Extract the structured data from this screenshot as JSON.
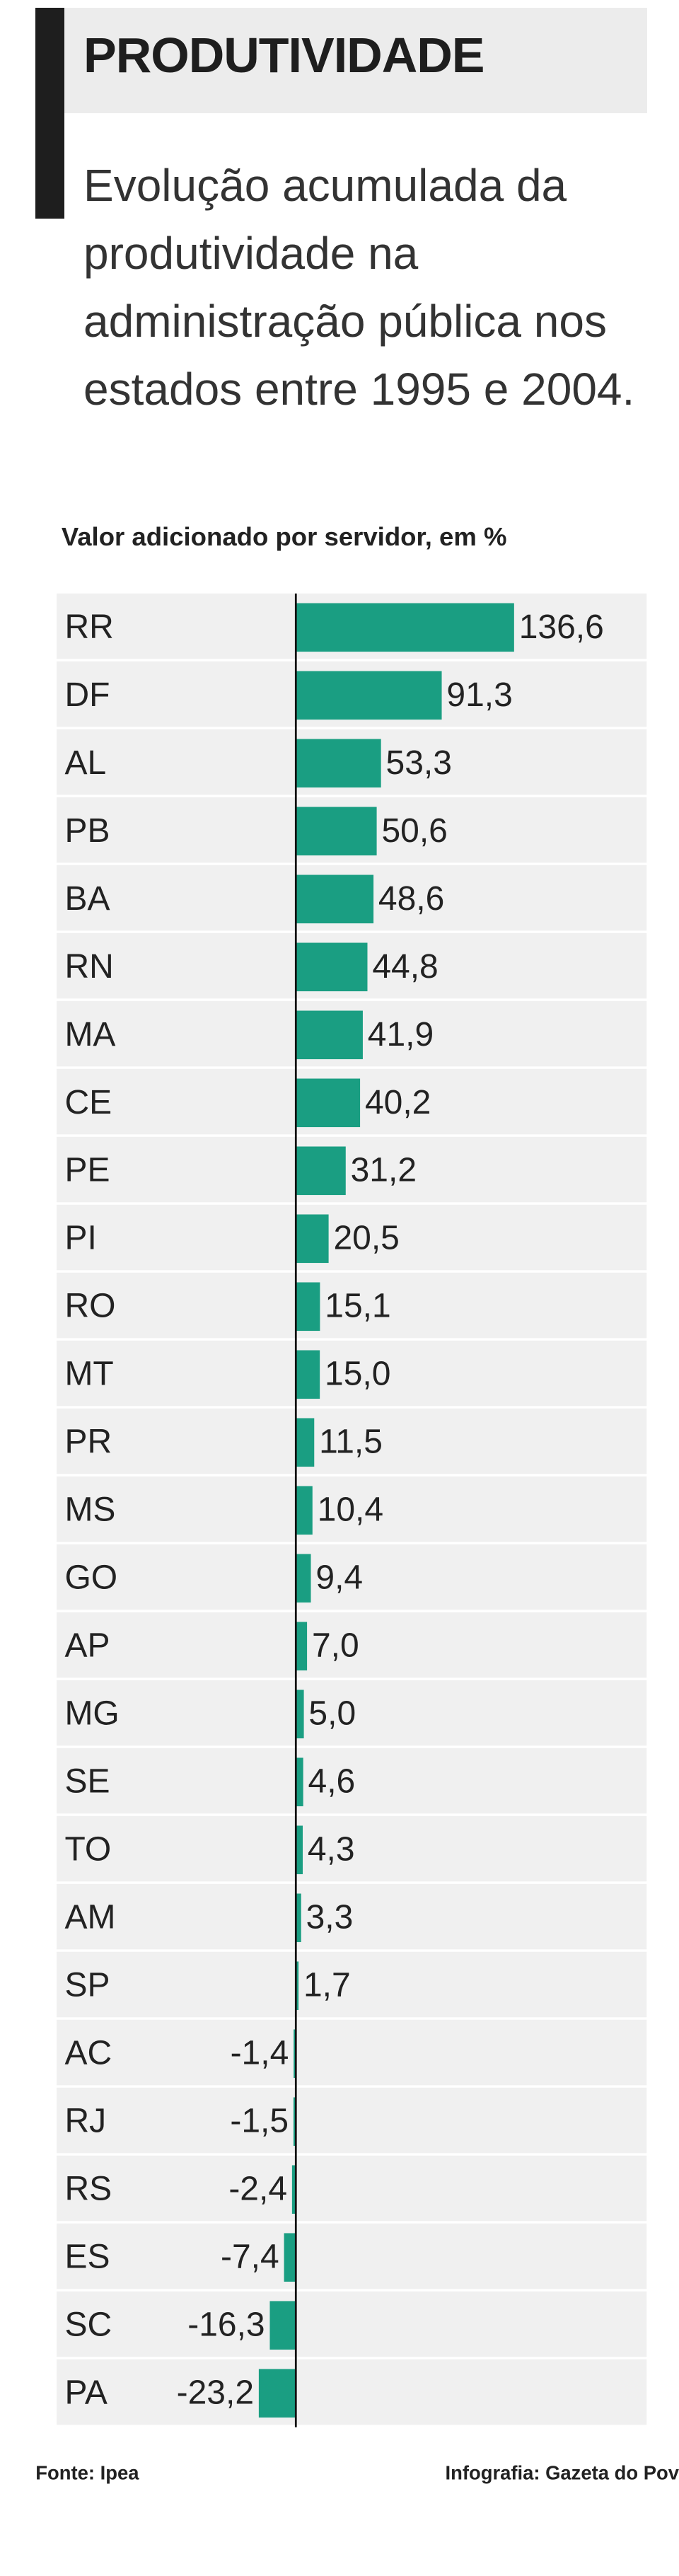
{
  "chart_data": {
    "type": "bar",
    "orientation": "horizontal",
    "title": "PRODUTIVIDADE",
    "subtitle": "Evolução acumulada da produtividade na administração pública nos estados entre 1995 e 2004.",
    "axis_label": "Valor adicionado por servidor, em %",
    "categories": [
      "RR",
      "DF",
      "AL",
      "PB",
      "BA",
      "RN",
      "MA",
      "CE",
      "PE",
      "PI",
      "RO",
      "MT",
      "PR",
      "MS",
      "GO",
      "AP",
      "MG",
      "SE",
      "TO",
      "AM",
      "SP",
      "AC",
      "RJ",
      "RS",
      "ES",
      "SC",
      "PA"
    ],
    "values": [
      136.6,
      91.3,
      53.3,
      50.6,
      48.6,
      44.8,
      41.9,
      40.2,
      31.2,
      20.5,
      15.1,
      15.0,
      11.5,
      10.4,
      9.4,
      7.0,
      5.0,
      4.6,
      4.3,
      3.3,
      1.7,
      -1.4,
      -1.5,
      -2.4,
      -7.4,
      -16.3,
      -23.2
    ],
    "value_labels": [
      "136,6",
      "91,3",
      "53,3",
      "50,6",
      "48,6",
      "44,8",
      "41,9",
      "40,2",
      "31,2",
      "20,5",
      "15,1",
      "15,0",
      "11,5",
      "10,4",
      "9,4",
      "7,0",
      "5,0",
      "4,6",
      "4,3",
      "3,3",
      "1,7",
      "-1,4",
      "-1,5",
      "-2,4",
      "-7,4",
      "-16,3",
      "-23,2"
    ],
    "color": "#1a9e82",
    "source": "Fonte: Ipea",
    "credit": "Infografia: Gazeta do Pov"
  }
}
